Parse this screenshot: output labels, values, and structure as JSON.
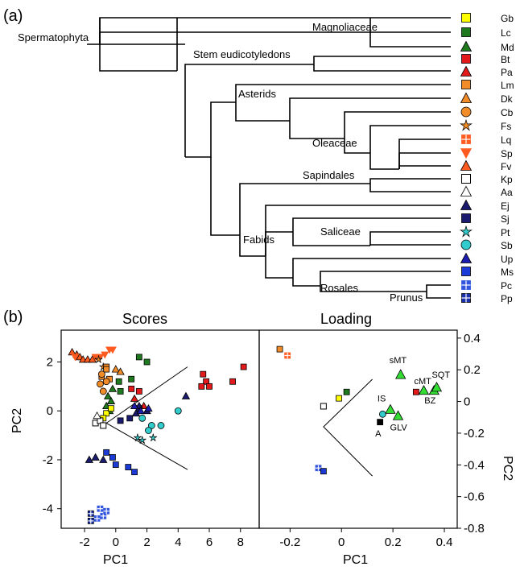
{
  "panel_labels": {
    "a": "(a)",
    "b": "(b)"
  },
  "tree": {
    "taxa": [
      {
        "code": "Gb",
        "shape": "square",
        "color": "#ffff00"
      },
      {
        "code": "Lc",
        "shape": "square",
        "color": "#1f7a1f"
      },
      {
        "code": "Md",
        "shape": "triangle",
        "color": "#1f7a1f"
      },
      {
        "code": "Bt",
        "shape": "square",
        "color": "#e31a1c"
      },
      {
        "code": "Pa",
        "shape": "triangle",
        "color": "#e31a1c"
      },
      {
        "code": "Lm",
        "shape": "square",
        "color": "#f28c28"
      },
      {
        "code": "Dk",
        "shape": "triangle",
        "color": "#f28c28"
      },
      {
        "code": "Cb",
        "shape": "circle",
        "color": "#f28c28"
      },
      {
        "code": "Fs",
        "shape": "star",
        "color": "#f28c28"
      },
      {
        "code": "Lq",
        "shape": "grid",
        "color": "#ff5a1f"
      },
      {
        "code": "Sp",
        "shape": "triangle-down",
        "color": "#ff5a1f"
      },
      {
        "code": "Fv",
        "shape": "triangle",
        "color": "#ff5a1f"
      },
      {
        "code": "Kp",
        "shape": "square-open",
        "color": "#000000"
      },
      {
        "code": "Aa",
        "shape": "triangle-open",
        "color": "#000000"
      },
      {
        "code": "Ej",
        "shape": "triangle",
        "color": "#1a1a6e"
      },
      {
        "code": "Sj",
        "shape": "square",
        "color": "#1a1a6e"
      },
      {
        "code": "Pt",
        "shape": "star",
        "color": "#33cccc"
      },
      {
        "code": "Sb",
        "shape": "circle",
        "color": "#33cccc"
      },
      {
        "code": "Up",
        "shape": "triangle",
        "color": "#1c1cb0"
      },
      {
        "code": "Ms",
        "shape": "square",
        "color": "#1c3bd6"
      },
      {
        "code": "Pc",
        "shape": "grid",
        "color": "#3355dd"
      },
      {
        "code": "Pp",
        "shape": "grid-dark",
        "color": "#1a2faa"
      }
    ],
    "clade_labels": {
      "spermatophyta": "Spermatophyta",
      "magnoliaceae": "Magnoliaceae",
      "stem_eudicots": "Stem eudicotyledons",
      "asterids": "Asterids",
      "oleaceae": "Oleaceae",
      "sapindales": "Sapindales",
      "saliceae": "Saliceae",
      "fabids": "Fabids",
      "rosales": "Rosales",
      "prunus": "Prunus"
    }
  },
  "chart_data": [
    {
      "type": "scatter",
      "title": "Scores",
      "xlabel": "PC1",
      "ylabel": "PC2",
      "xlim": [
        -3.5,
        9.2
      ],
      "ylim": [
        -4.8,
        3.3
      ],
      "xticks": [
        -2,
        0,
        2,
        4,
        6,
        8
      ],
      "yticks": [
        2,
        0,
        -2,
        -4
      ],
      "points": [
        {
          "x": -2.8,
          "y": 2.4,
          "g": "Fv"
        },
        {
          "x": -2.5,
          "y": 2.3,
          "g": "Fv"
        },
        {
          "x": -2.3,
          "y": 2.2,
          "g": "Fv"
        },
        {
          "x": -2.1,
          "y": 2.1,
          "g": "Fv"
        },
        {
          "x": -1.8,
          "y": 2.1,
          "g": "Fv"
        },
        {
          "x": -1.5,
          "y": 2.1,
          "g": "Fv"
        },
        {
          "x": -2.6,
          "y": 2.2,
          "g": "Sp"
        },
        {
          "x": -1.3,
          "y": 2.2,
          "g": "Sp"
        },
        {
          "x": -1.0,
          "y": 2.2,
          "g": "Sp"
        },
        {
          "x": -0.7,
          "y": 2.3,
          "g": "Sp"
        },
        {
          "x": -0.4,
          "y": 2.5,
          "g": "Sp"
        },
        {
          "x": -0.2,
          "y": 2.5,
          "g": "Sp"
        },
        {
          "x": -1.1,
          "y": 2.1,
          "g": "Fs"
        },
        {
          "x": -0.8,
          "y": 1.8,
          "g": "Fs"
        },
        {
          "x": -0.6,
          "y": 1.8,
          "g": "Lm"
        },
        {
          "x": -0.9,
          "y": 1.4,
          "g": "Lm"
        },
        {
          "x": -0.4,
          "y": 1.3,
          "g": "Lm"
        },
        {
          "x": -0.6,
          "y": 1.7,
          "g": "Lm"
        },
        {
          "x": 0.0,
          "y": 1.7,
          "g": "Dk"
        },
        {
          "x": 0.3,
          "y": 1.6,
          "g": "Dk"
        },
        {
          "x": -1.0,
          "y": 1.1,
          "g": "Cb"
        },
        {
          "x": -0.8,
          "y": 0.8,
          "g": "Cb"
        },
        {
          "x": -0.6,
          "y": 1.2,
          "g": "Cb"
        },
        {
          "x": -0.9,
          "y": 1.5,
          "g": "Cb"
        },
        {
          "x": 0.2,
          "y": 1.2,
          "g": "Lc"
        },
        {
          "x": 0.3,
          "y": 0.8,
          "g": "Lc"
        },
        {
          "x": 1.5,
          "y": 2.2,
          "g": "Lc"
        },
        {
          "x": 2.0,
          "y": 2.0,
          "g": "Lc"
        },
        {
          "x": 1.0,
          "y": 1.3,
          "g": "Lc"
        },
        {
          "x": -0.5,
          "y": 0.6,
          "g": "Md"
        },
        {
          "x": -0.3,
          "y": 0.4,
          "g": "Md"
        },
        {
          "x": -0.6,
          "y": 0.2,
          "g": "Md"
        },
        {
          "x": -0.2,
          "y": 0.9,
          "g": "Md"
        },
        {
          "x": -0.4,
          "y": 0.0,
          "g": "Md"
        },
        {
          "x": -0.6,
          "y": -0.1,
          "g": "Gb"
        },
        {
          "x": -0.8,
          "y": -0.3,
          "g": "Gb"
        },
        {
          "x": -0.3,
          "y": 0.1,
          "g": "Gb"
        },
        {
          "x": 1.0,
          "y": 0.9,
          "g": "Bt"
        },
        {
          "x": 1.5,
          "y": 0.8,
          "g": "Bt"
        },
        {
          "x": 5.6,
          "y": 1.5,
          "g": "Bt"
        },
        {
          "x": 5.8,
          "y": 1.2,
          "g": "Bt"
        },
        {
          "x": 6.0,
          "y": 1.0,
          "g": "Bt"
        },
        {
          "x": 7.5,
          "y": 1.2,
          "g": "Bt"
        },
        {
          "x": 8.2,
          "y": 1.8,
          "g": "Bt"
        },
        {
          "x": 5.5,
          "y": 1.0,
          "g": "Bt"
        },
        {
          "x": 1.2,
          "y": 0.5,
          "g": "Pa"
        },
        {
          "x": 1.8,
          "y": 0.2,
          "g": "Pa"
        },
        {
          "x": -1.3,
          "y": -0.5,
          "g": "Kp"
        },
        {
          "x": -1.0,
          "y": -0.4,
          "g": "Kp"
        },
        {
          "x": -0.8,
          "y": -0.6,
          "g": "Kp"
        },
        {
          "x": -1.2,
          "y": -0.2,
          "g": "Aa"
        },
        {
          "x": 0.3,
          "y": -0.4,
          "g": "Sj"
        },
        {
          "x": 0.9,
          "y": -0.3,
          "g": "Sj"
        },
        {
          "x": 1.5,
          "y": 0.1,
          "g": "Sj"
        },
        {
          "x": -1.7,
          "y": -2.0,
          "g": "Ej"
        },
        {
          "x": -1.3,
          "y": -1.9,
          "g": "Ej"
        },
        {
          "x": -0.8,
          "y": -2.0,
          "g": "Ej"
        },
        {
          "x": 1.5,
          "y": 0.2,
          "g": "Ej"
        },
        {
          "x": 2.0,
          "y": 0.0,
          "g": "Ej"
        },
        {
          "x": 1.3,
          "y": -0.1,
          "g": "Ej"
        },
        {
          "x": 4.5,
          "y": 0.6,
          "g": "Ej"
        },
        {
          "x": 1.2,
          "y": 0.2,
          "g": "Up"
        },
        {
          "x": 1.6,
          "y": 0.0,
          "g": "Up"
        },
        {
          "x": 2.1,
          "y": 0.1,
          "g": "Up"
        },
        {
          "x": -0.2,
          "y": -1.9,
          "g": "Ms"
        },
        {
          "x": 0.0,
          "y": -2.2,
          "g": "Ms"
        },
        {
          "x": 0.8,
          "y": -2.3,
          "g": "Ms"
        },
        {
          "x": 1.2,
          "y": -2.5,
          "g": "Ms"
        },
        {
          "x": -0.6,
          "y": -1.7,
          "g": "Ms"
        },
        {
          "x": -1.6,
          "y": -4.2,
          "g": "Pp"
        },
        {
          "x": -1.6,
          "y": -4.5,
          "g": "Pp"
        },
        {
          "x": -1.0,
          "y": -4.0,
          "g": "Pc"
        },
        {
          "x": -0.8,
          "y": -4.3,
          "g": "Pc"
        },
        {
          "x": -1.2,
          "y": -4.4,
          "g": "Pc"
        },
        {
          "x": -0.6,
          "y": -4.1,
          "g": "Pc"
        },
        {
          "x": 1.7,
          "y": -0.3,
          "g": "Sb"
        },
        {
          "x": 2.3,
          "y": -0.6,
          "g": "Sb"
        },
        {
          "x": 2.1,
          "y": -0.8,
          "g": "Sb"
        },
        {
          "x": 2.9,
          "y": -0.6,
          "g": "Sb"
        },
        {
          "x": 4.0,
          "y": 0.0,
          "g": "Sb"
        },
        {
          "x": 1.4,
          "y": -1.1,
          "g": "Pt"
        },
        {
          "x": 1.7,
          "y": -1.2,
          "g": "Pt"
        },
        {
          "x": 2.4,
          "y": -1.1,
          "g": "Pt"
        }
      ],
      "wedge": [
        [
          4.6,
          -2.4
        ],
        [
          -0.6,
          -0.5
        ],
        [
          4.6,
          1.8
        ]
      ]
    },
    {
      "type": "scatter",
      "title": "Loading",
      "xlabel": "PC1",
      "ylabel": "PC2",
      "xlim": [
        -0.32,
        0.45
      ],
      "ylim": [
        -0.8,
        0.45
      ],
      "xticks": [
        -0.2,
        0.0,
        0.2,
        0.4
      ],
      "yticks": [
        0.4,
        0.2,
        0.0,
        -0.2,
        -0.4,
        -0.6,
        -0.8
      ],
      "points": [
        {
          "x": -0.24,
          "y": 0.33,
          "g": "Lm"
        },
        {
          "x": -0.21,
          "y": 0.29,
          "g": "Lq"
        },
        {
          "x": 0.02,
          "y": 0.06,
          "g": "Lc"
        },
        {
          "x": -0.01,
          "y": 0.02,
          "g": "Gb"
        },
        {
          "x": -0.07,
          "y": -0.03,
          "g": "Kp"
        },
        {
          "x": -0.09,
          "y": -0.42,
          "g": "Pc"
        },
        {
          "x": -0.07,
          "y": -0.44,
          "g": "Ms"
        },
        {
          "x": 0.15,
          "y": -0.13,
          "g": "A"
        },
        {
          "x": 0.16,
          "y": -0.08,
          "g": "Sb"
        },
        {
          "x": 0.23,
          "y": 0.17,
          "g": "sMT"
        },
        {
          "x": 0.19,
          "y": -0.05,
          "g": "IS"
        },
        {
          "x": 0.22,
          "y": -0.09,
          "g": "GLV"
        },
        {
          "x": 0.29,
          "y": 0.06,
          "g": "Bt"
        },
        {
          "x": 0.32,
          "y": 0.07,
          "g": "cMT"
        },
        {
          "x": 0.36,
          "y": 0.07,
          "g": "BZ"
        },
        {
          "x": 0.37,
          "y": 0.09,
          "g": "SQT"
        }
      ],
      "annotations": [
        "sMT",
        "cMT",
        "SQT",
        "IS",
        "BZ",
        "A",
        "GLV"
      ],
      "wedge": [
        [
          0.12,
          -0.47
        ],
        [
          -0.07,
          -0.16
        ],
        [
          0.12,
          0.14
        ]
      ]
    }
  ]
}
